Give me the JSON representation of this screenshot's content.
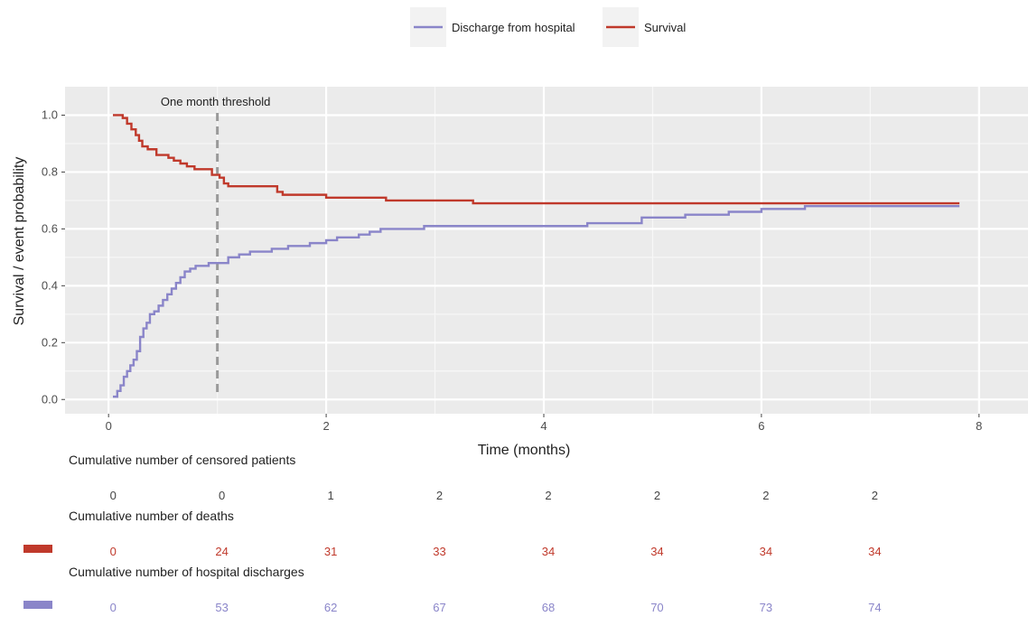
{
  "chart_data": {
    "type": "line",
    "step": true,
    "xlabel": "Time (months)",
    "ylabel": "Survival / event probability",
    "xlim": [
      -0.4,
      8.45
    ],
    "ylim": [
      -0.05,
      1.1
    ],
    "xticks": [
      0,
      2,
      4,
      6,
      8
    ],
    "yticks": [
      0.0,
      0.2,
      0.4,
      0.6,
      0.8,
      1.0
    ],
    "ytick_labels": [
      "0.0",
      "0.2",
      "0.4",
      "0.6",
      "0.8",
      "1.0"
    ],
    "grid": true,
    "legend_position": "top",
    "series": [
      {
        "name": "Discharge from hospital",
        "color": "#8a85c9",
        "x": [
          0.04,
          0.08,
          0.11,
          0.14,
          0.17,
          0.2,
          0.23,
          0.26,
          0.29,
          0.32,
          0.35,
          0.38,
          0.42,
          0.46,
          0.5,
          0.54,
          0.58,
          0.62,
          0.66,
          0.7,
          0.75,
          0.8,
          0.86,
          0.92,
          1.0,
          1.1,
          1.2,
          1.3,
          1.5,
          1.65,
          1.85,
          2.0,
          2.1,
          2.3,
          2.4,
          2.5,
          2.7,
          2.9,
          3.2,
          3.8,
          4.4,
          4.9,
          5.3,
          5.7,
          6.0,
          6.4,
          7.0,
          7.82
        ],
        "y": [
          0.01,
          0.03,
          0.05,
          0.08,
          0.1,
          0.12,
          0.14,
          0.17,
          0.22,
          0.25,
          0.27,
          0.3,
          0.31,
          0.33,
          0.35,
          0.37,
          0.39,
          0.41,
          0.43,
          0.45,
          0.46,
          0.47,
          0.47,
          0.48,
          0.48,
          0.5,
          0.51,
          0.52,
          0.53,
          0.54,
          0.55,
          0.56,
          0.57,
          0.58,
          0.59,
          0.6,
          0.6,
          0.61,
          0.61,
          0.61,
          0.62,
          0.64,
          0.65,
          0.66,
          0.67,
          0.68,
          0.68,
          0.68
        ]
      },
      {
        "name": "Survival",
        "color": "#c0392b",
        "x": [
          0.04,
          0.13,
          0.17,
          0.21,
          0.25,
          0.28,
          0.31,
          0.36,
          0.44,
          0.55,
          0.6,
          0.66,
          0.72,
          0.79,
          0.95,
          1.02,
          1.06,
          1.1,
          1.55,
          1.6,
          2.0,
          2.55,
          3.0,
          3.35,
          4.0,
          5.0,
          6.0,
          7.0,
          7.82
        ],
        "y": [
          1.0,
          0.99,
          0.97,
          0.95,
          0.93,
          0.91,
          0.89,
          0.88,
          0.86,
          0.85,
          0.84,
          0.83,
          0.82,
          0.81,
          0.79,
          0.78,
          0.76,
          0.75,
          0.73,
          0.72,
          0.71,
          0.7,
          0.7,
          0.69,
          0.69,
          0.69,
          0.69,
          0.69,
          0.69
        ]
      }
    ],
    "annotations": [
      {
        "type": "vline",
        "x": 1.0,
        "label": "One month threshold",
        "style": "dashed",
        "color": "#9a9a9a"
      }
    ],
    "risk_table": {
      "time_points": [
        0,
        1,
        2,
        3,
        4,
        5,
        6,
        7
      ],
      "rows": [
        {
          "title": "Cumulative number of censored patients",
          "values": [
            "0",
            "0",
            "1",
            "2",
            "2",
            "2",
            "2",
            "2"
          ],
          "color": "#444444",
          "swatch": false
        },
        {
          "title": "Cumulative number of deaths",
          "values": [
            "0",
            "24",
            "31",
            "33",
            "34",
            "34",
            "34",
            "34"
          ],
          "color": "#c0392b",
          "swatch": true
        },
        {
          "title": "Cumulative number of hospital discharges",
          "values": [
            "0",
            "53",
            "62",
            "67",
            "68",
            "70",
            "73",
            "74"
          ],
          "color": "#8a85c9",
          "swatch": true
        }
      ]
    }
  }
}
